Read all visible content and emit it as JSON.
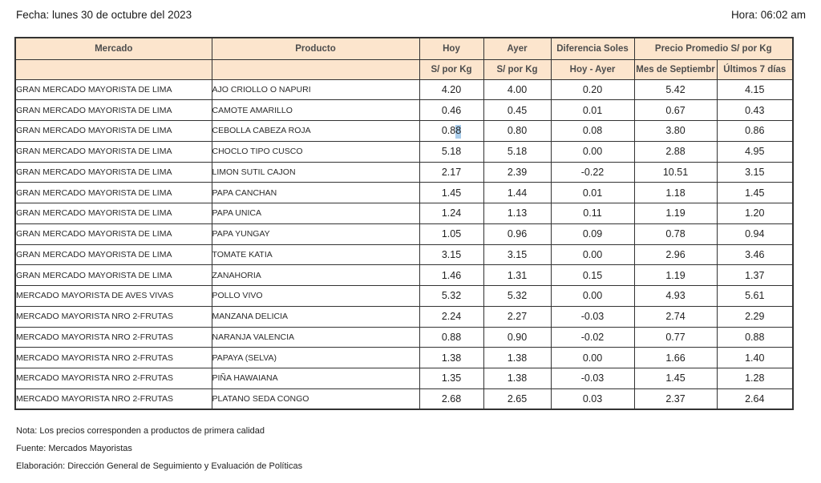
{
  "header": {
    "fecha": "Fecha: lunes 30 de octubre del 2023",
    "hora": "Hora: 06:02 am"
  },
  "table": {
    "header_row1": [
      "Mercado",
      "Producto",
      "Hoy",
      "Ayer",
      "Diferencia Soles",
      "Precio Promedio S/ por Kg"
    ],
    "header_row2": [
      "S/ por Kg",
      "S/ por Kg",
      "Hoy - Ayer",
      "Mes de Septiembr",
      "Últimos 7 días"
    ],
    "selection": {
      "row_index": 2,
      "col": "hoy",
      "before": "0.8",
      "highlighted": "8"
    },
    "rows": [
      {
        "mercado": "GRAN MERCADO MAYORISTA DE LIMA",
        "producto": "AJO CRIOLLO O NAPURI",
        "hoy": "4.20",
        "ayer": "4.00",
        "diferencia": "0.20",
        "mes_septiembre": "5.42",
        "ultimos_7_dias": "4.15"
      },
      {
        "mercado": "GRAN MERCADO MAYORISTA DE LIMA",
        "producto": "CAMOTE AMARILLO",
        "hoy": "0.46",
        "ayer": "0.45",
        "diferencia": "0.01",
        "mes_septiembre": "0.67",
        "ultimos_7_dias": "0.43"
      },
      {
        "mercado": "GRAN MERCADO MAYORISTA DE LIMA",
        "producto": "CEBOLLA CABEZA ROJA",
        "hoy": "0.88",
        "ayer": "0.80",
        "diferencia": "0.08",
        "mes_septiembre": "3.80",
        "ultimos_7_dias": "0.86"
      },
      {
        "mercado": "GRAN MERCADO MAYORISTA DE LIMA",
        "producto": "CHOCLO TIPO CUSCO",
        "hoy": "5.18",
        "ayer": "5.18",
        "diferencia": "0.00",
        "mes_septiembre": "2.88",
        "ultimos_7_dias": "4.95"
      },
      {
        "mercado": "GRAN MERCADO MAYORISTA DE LIMA",
        "producto": "LIMON SUTIL CAJON",
        "hoy": "2.17",
        "ayer": "2.39",
        "diferencia": "-0.22",
        "mes_septiembre": "10.51",
        "ultimos_7_dias": "3.15"
      },
      {
        "mercado": "GRAN MERCADO MAYORISTA DE LIMA",
        "producto": "PAPA CANCHAN",
        "hoy": "1.45",
        "ayer": "1.44",
        "diferencia": "0.01",
        "mes_septiembre": "1.18",
        "ultimos_7_dias": "1.45"
      },
      {
        "mercado": "GRAN MERCADO MAYORISTA DE LIMA",
        "producto": "PAPA UNICA",
        "hoy": "1.24",
        "ayer": "1.13",
        "diferencia": "0.11",
        "mes_septiembre": "1.19",
        "ultimos_7_dias": "1.20"
      },
      {
        "mercado": "GRAN MERCADO MAYORISTA DE LIMA",
        "producto": "PAPA YUNGAY",
        "hoy": "1.05",
        "ayer": "0.96",
        "diferencia": "0.09",
        "mes_septiembre": "0.78",
        "ultimos_7_dias": "0.94"
      },
      {
        "mercado": "GRAN MERCADO MAYORISTA DE LIMA",
        "producto": "TOMATE KATIA",
        "hoy": "3.15",
        "ayer": "3.15",
        "diferencia": "0.00",
        "mes_septiembre": "2.96",
        "ultimos_7_dias": "3.46"
      },
      {
        "mercado": "GRAN MERCADO MAYORISTA DE LIMA",
        "producto": "ZANAHORIA",
        "hoy": "1.46",
        "ayer": "1.31",
        "diferencia": "0.15",
        "mes_septiembre": "1.19",
        "ultimos_7_dias": "1.37"
      },
      {
        "mercado": "MERCADO MAYORISTA DE AVES VIVAS",
        "producto": "POLLO VIVO",
        "hoy": "5.32",
        "ayer": "5.32",
        "diferencia": "0.00",
        "mes_septiembre": "4.93",
        "ultimos_7_dias": "5.61"
      },
      {
        "mercado": "MERCADO MAYORISTA NRO 2-FRUTAS",
        "producto": "MANZANA DELICIA",
        "hoy": "2.24",
        "ayer": "2.27",
        "diferencia": "-0.03",
        "mes_septiembre": "2.74",
        "ultimos_7_dias": "2.29"
      },
      {
        "mercado": "MERCADO MAYORISTA NRO 2-FRUTAS",
        "producto": "NARANJA VALENCIA",
        "hoy": "0.88",
        "ayer": "0.90",
        "diferencia": "-0.02",
        "mes_septiembre": "0.77",
        "ultimos_7_dias": "0.88"
      },
      {
        "mercado": "MERCADO MAYORISTA NRO 2-FRUTAS",
        "producto": "PAPAYA (SELVA)",
        "hoy": "1.38",
        "ayer": "1.38",
        "diferencia": "0.00",
        "mes_septiembre": "1.66",
        "ultimos_7_dias": "1.40"
      },
      {
        "mercado": "MERCADO MAYORISTA NRO 2-FRUTAS",
        "producto": "PIÑA HAWAIANA",
        "hoy": "1.35",
        "ayer": "1.38",
        "diferencia": "-0.03",
        "mes_septiembre": "1.45",
        "ultimos_7_dias": "1.28"
      },
      {
        "mercado": "MERCADO MAYORISTA NRO 2-FRUTAS",
        "producto": "PLATANO SEDA CONGO",
        "hoy": "2.68",
        "ayer": "2.65",
        "diferencia": "0.03",
        "mes_septiembre": "2.37",
        "ultimos_7_dias": "2.64"
      }
    ]
  },
  "footer": {
    "nota": "Nota: Los precios corresponden a productos de primera calidad",
    "fuente": "Fuente: Mercados Mayoristas",
    "elaboracion": "Elaboración: Dirección General de Seguimiento y Evaluación de Políticas"
  },
  "colors": {
    "header_bg": "#fce5cd",
    "border_color": "#333333",
    "header_text": "#4d4d4d",
    "data_text": "#1f1f1f",
    "selection_bg": "#a9cdec"
  }
}
